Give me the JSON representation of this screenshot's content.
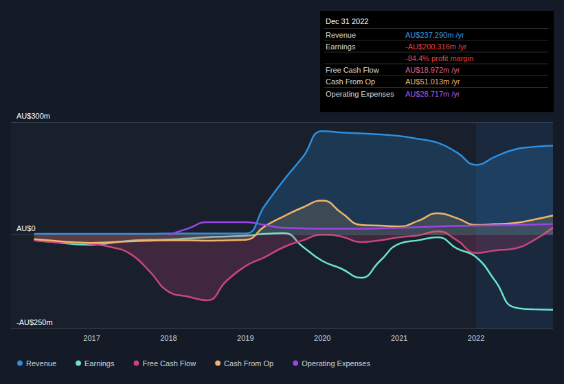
{
  "chart_data": {
    "type": "line",
    "x": [
      2016.25,
      2016.5,
      2016.75,
      2017,
      2017.25,
      2017.5,
      2017.75,
      2018,
      2018.25,
      2018.5,
      2018.75,
      2019,
      2019.25,
      2019.5,
      2019.75,
      2020,
      2020.25,
      2020.5,
      2020.75,
      2021,
      2021.25,
      2021.5,
      2021.75,
      2022,
      2022.25,
      2022.5,
      2022.75,
      2023
    ],
    "series": [
      {
        "name": "Revenue",
        "color": "#2e8fe0",
        "values": [
          2,
          2,
          2,
          2,
          2,
          2,
          2,
          3,
          3,
          3,
          3,
          3,
          77,
          146,
          208,
          276,
          272,
          270,
          267,
          263,
          255,
          245,
          219,
          186,
          208,
          227,
          234,
          237.29
        ]
      },
      {
        "name": "Earnings",
        "color": "#6be3cf",
        "values": [
          -15,
          -20,
          -25,
          -27,
          -22,
          -16,
          -14,
          -13,
          -10,
          -7,
          -5,
          -3,
          2,
          4,
          -33,
          -70,
          -91,
          -115,
          -70,
          -24,
          -15,
          -7,
          -37,
          -60,
          -124,
          -194,
          -199,
          -200.32
        ]
      },
      {
        "name": "Free Cash Flow",
        "color": "#c9457f",
        "values": [
          -15,
          -20,
          -22,
          -25,
          -33,
          -51,
          -97,
          -152,
          -165,
          -175,
          -124,
          -84,
          -60,
          -33,
          -15,
          0,
          -5,
          -20,
          -15,
          -7,
          -2,
          9,
          -15,
          -49,
          -42,
          -37,
          -15,
          18.97
        ]
      },
      {
        "name": "Cash From Op",
        "color": "#f2b46a",
        "values": [
          -12,
          -16,
          -20,
          -22,
          -20,
          -18,
          -16,
          -15,
          -15,
          -16,
          -15,
          -14,
          22,
          49,
          73,
          91,
          58,
          26,
          24,
          22,
          37,
          57,
          44,
          26,
          28,
          31,
          40,
          51.01
        ]
      },
      {
        "name": "Operating Expenses",
        "color": "#9d44e6",
        "values": [
          null,
          null,
          null,
          null,
          null,
          null,
          null,
          0,
          16,
          33,
          33,
          33,
          26,
          18,
          17,
          16,
          16,
          16,
          17,
          18,
          20,
          22,
          23,
          24,
          25,
          26,
          27,
          28.72
        ]
      }
    ],
    "xlim": [
      2015.95,
      2023
    ],
    "xticks": [
      2017,
      2018,
      2019,
      2020,
      2021,
      2022
    ],
    "ylim": [
      -250,
      300
    ],
    "yticks": [
      {
        "value": -250,
        "label": "-AU$250m"
      },
      {
        "value": 0,
        "label": "AU$0"
      },
      {
        "value": 300,
        "label": "AU$300m"
      }
    ],
    "grid": true,
    "legend": "bottom-left",
    "shaded_x": [
      2022,
      2023
    ],
    "info_box": {
      "title": "Dec 31 2022",
      "rows": [
        {
          "label": "Revenue",
          "value": "AU$237.290m /yr",
          "color": "#3d9be9"
        },
        {
          "label": "Earnings",
          "value": "-AU$200.316m /yr",
          "color": "#e8413e"
        },
        {
          "value": "-84.4% profit margin",
          "color": "#e8413e"
        },
        {
          "label": "Free Cash Flow",
          "value": "AU$18.972m /yr",
          "color": "#e0628f"
        },
        {
          "label": "Cash From Op",
          "value": "AU$51.013m /yr",
          "color": "#f2b46a"
        },
        {
          "label": "Operating Expenses",
          "value": "AU$28.717m /yr",
          "color": "#a85cf0"
        }
      ]
    }
  }
}
